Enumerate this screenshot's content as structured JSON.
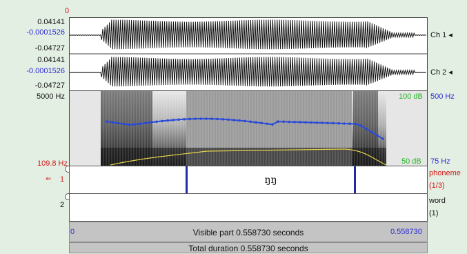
{
  "cursor_top": "0",
  "wave": {
    "ch1": {
      "max": "0.04141",
      "mid": "-0.0001526",
      "min": "-0.04727",
      "name": "Ch 1 ◂"
    },
    "ch2": {
      "max": "0.04141",
      "mid": "-0.0001526",
      "min": "-0.04727",
      "name": "Ch 2 ◂"
    }
  },
  "spectrogram": {
    "freq_top": "5000 Hz",
    "freq_bottom": "109.8 Hz",
    "intensity_top": "100 dB",
    "intensity_bottom": "50 dB",
    "pitch_top": "500 Hz",
    "pitch_bottom": "75 Hz"
  },
  "tiers": [
    {
      "number": "1",
      "name": "phoneme",
      "count": "(1/3)",
      "interval_text": "ŋŋ"
    },
    {
      "number": "2",
      "name": "word",
      "count": "(1)"
    }
  ],
  "time": {
    "start": "0",
    "end": "0.558730",
    "visible": "Visible part 0.558730 seconds",
    "total": "Total duration 0.558730 seconds"
  },
  "colors": {
    "accent_blue": "#2b2bd6",
    "accent_red": "#d01818",
    "pitch_blue": "#2a4bd8",
    "intensity_yellow": "#e6d34a",
    "boundary": "#1f2aa8"
  },
  "icons": {
    "tier_pointer": "hand-pointer-icon",
    "channel_marker": "triangle-left-icon"
  }
}
